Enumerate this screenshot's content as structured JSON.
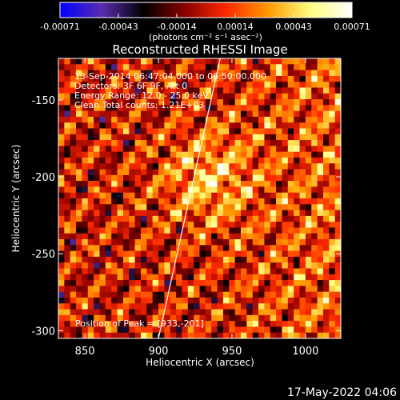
{
  "chart_data": {
    "type": "heatmap",
    "title": "Reconstructed RHESSI Image",
    "xlabel": "Heliocentric X (arcsec)",
    "ylabel": "Heliocentric Y (arcsec)",
    "xlim": [
      832,
      1024
    ],
    "ylim": [
      -305,
      -123
    ],
    "x_ticks": [
      850,
      900,
      950,
      1000
    ],
    "y_ticks": [
      -150,
      -200,
      -250,
      -300
    ],
    "colorbar": {
      "ticks": [
        "-0.00071",
        "-0.00043",
        "-0.00014",
        "0.00014",
        "0.00043",
        "0.00071"
      ],
      "range": [
        -0.00071,
        0.00071
      ],
      "unit_label": "(photons cm⁻² s⁻¹ asec⁻²)",
      "colormap": [
        "#0000ff",
        "#5a2cb0",
        "#000000",
        "#8b0000",
        "#ff2a00",
        "#ff9a00",
        "#ffff80",
        "#ffffff"
      ]
    },
    "info_lines": [
      "13-Sep-2014 06:47:04.000 to 06:50:00.000",
      "Detectors: 3F 6F 9F, Att 0",
      "Energy Range: 12.0 - 25.0 keV",
      "Clean     Total counts: 1.21E+03"
    ],
    "peak_label": "Position of Peak = [933,-201]",
    "peak": [
      933,
      -201
    ],
    "limb_points": [
      [
        900,
        -305
      ],
      [
        942,
        -123
      ]
    ],
    "grid_cells": [
      48,
      48
    ]
  },
  "timestamp": "17-May-2022 04:06"
}
